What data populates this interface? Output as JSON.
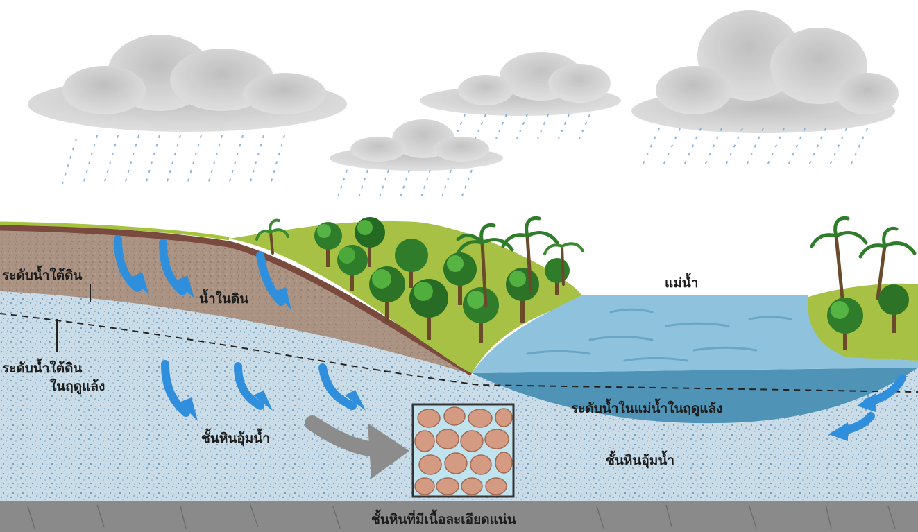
{
  "labels": {
    "water_table": "ระดับน้ำใต้ดิน",
    "soil_water": "น้ำในดิน",
    "river": "แม่น้ำ",
    "dry_season_water_table_line1": "ระดับน้ำใต้ดิน",
    "dry_season_water_table_line2": "ในฤดูแล้ง",
    "aquifer_left": "ชั้นหินอุ้มน้ำ",
    "river_level_dry_season": "ระดับน้ำในแม่น้ำในฤดูแล้ง",
    "aquifer_right": "ชั้นหินอุ้มน้ำ",
    "impermeable_layer": "ชั้นหินที่มีเนื้อละเอียดแน่น"
  },
  "icons": [
    "rain-cloud-icon",
    "tree-icon",
    "palm-tree-icon",
    "flow-arrow-icon",
    "pore-magnifier-icon"
  ],
  "colors": {
    "sky": "#ffffff",
    "cloud": "#a9a9a9",
    "rain": "#7aa9d6",
    "grass": "#9fbf3a",
    "soil": "#a98f7c",
    "soil_edge": "#7a4a3e",
    "aquifer": "#c7dbe6",
    "river_surface": "#8fc3dd",
    "river_deep": "#4f94b6",
    "bedrock": "#8a8a8a",
    "flow_arrow": "#2f8fdc",
    "grain": "#d49a82"
  }
}
